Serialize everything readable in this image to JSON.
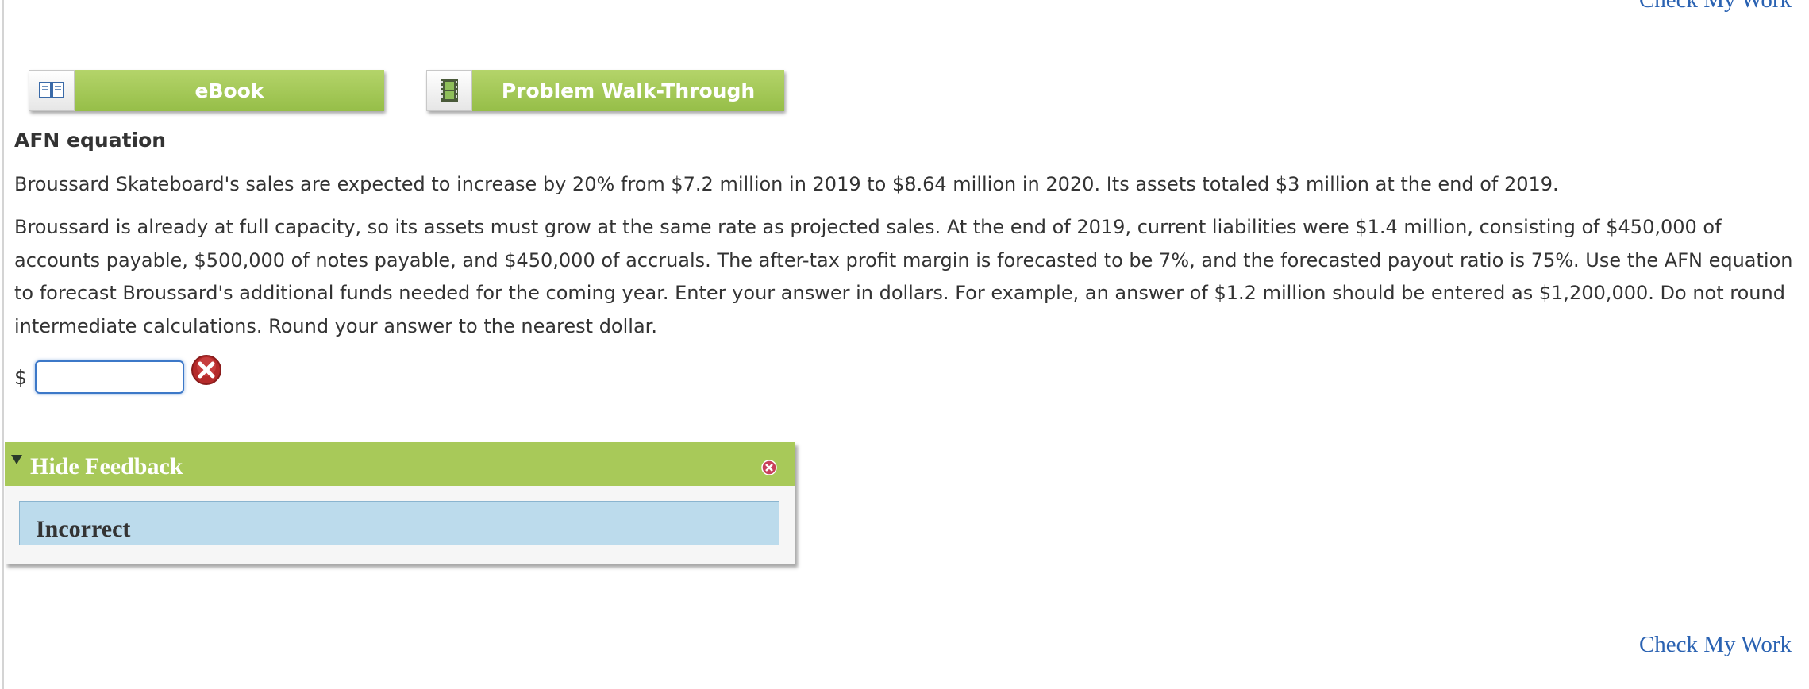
{
  "links": {
    "check_top": "Check My Work",
    "check_bottom": "Check My Work"
  },
  "resources": {
    "ebook": {
      "label": "eBook",
      "icon": "book-icon"
    },
    "walkthrough": {
      "label": "Problem Walk-Through",
      "icon": "film-icon"
    }
  },
  "problem": {
    "title": "AFN equation",
    "para1": "Broussard Skateboard's sales are expected to increase by 20% from $7.2 million in 2019 to $8.64 million in 2020. Its assets totaled $3 million at the end of 2019.",
    "para2": "Broussard is already at full capacity, so its assets must grow at the same rate as projected sales. At the end of 2019, current liabilities were $1.4 million, consisting of $450,000 of accounts payable, $500,000 of notes payable, and $450,000 of accruals. The after-tax profit margin is forecasted to be 7%, and the forecasted payout ratio is 75%. Use the AFN equation to forecast Broussard's additional funds needed for the coming year. Enter your answer in dollars. For example, an answer of $1.2 million should be entered as $1,200,000. Do not round intermediate calculations. Round your answer to the nearest dollar."
  },
  "answer": {
    "currency": "$",
    "value": "",
    "status_icon": "incorrect-x-icon"
  },
  "feedback": {
    "toggle_label": "Hide Feedback",
    "result": "Incorrect",
    "colors": {
      "header": "#a8c959",
      "body": "#bcdbec"
    }
  },
  "colors": {
    "link": "#2a62b2",
    "button": "#a0c552",
    "input_border": "#3c78c8"
  }
}
